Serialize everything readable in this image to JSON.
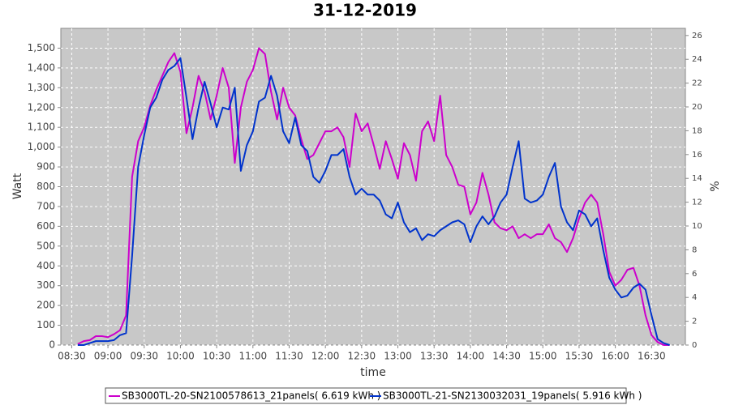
{
  "chart_data": {
    "type": "line",
    "title": "31-12-2019",
    "xlabel": "time",
    "ylabel": "Watt",
    "y2label": "%",
    "x": [
      "08:35",
      "08:40",
      "08:45",
      "08:50",
      "08:55",
      "09:00",
      "09:05",
      "09:10",
      "09:15",
      "09:20",
      "09:25",
      "09:30",
      "09:35",
      "09:40",
      "09:45",
      "09:50",
      "09:55",
      "10:00",
      "10:05",
      "10:10",
      "10:15",
      "10:20",
      "10:25",
      "10:30",
      "10:35",
      "10:40",
      "10:45",
      "10:50",
      "10:55",
      "11:00",
      "11:05",
      "11:10",
      "11:15",
      "11:20",
      "11:25",
      "11:30",
      "11:35",
      "11:40",
      "11:45",
      "11:50",
      "11:55",
      "12:00",
      "12:05",
      "12:10",
      "12:15",
      "12:20",
      "12:25",
      "12:30",
      "12:35",
      "12:40",
      "12:45",
      "12:50",
      "12:55",
      "13:00",
      "13:05",
      "13:10",
      "13:15",
      "13:20",
      "13:25",
      "13:30",
      "13:35",
      "13:40",
      "13:45",
      "13:50",
      "13:55",
      "14:00",
      "14:05",
      "14:10",
      "14:15",
      "14:20",
      "14:25",
      "14:30",
      "14:35",
      "14:40",
      "14:45",
      "14:50",
      "14:55",
      "15:00",
      "15:05",
      "15:10",
      "15:15",
      "15:20",
      "15:25",
      "15:30",
      "15:35",
      "15:40",
      "15:45",
      "15:50",
      "15:55",
      "16:00",
      "16:05",
      "16:10",
      "16:15",
      "16:20",
      "16:25",
      "16:30",
      "16:35",
      "16:40",
      "16:45"
    ],
    "series": [
      {
        "name": "SB3000TL-20-SN2100578613_21panels( 6.619 kWh )",
        "color": "#cc00cc",
        "values": [
          5,
          20,
          25,
          45,
          45,
          40,
          55,
          75,
          150,
          850,
          1030,
          1100,
          1210,
          1290,
          1360,
          1430,
          1475,
          1380,
          1070,
          1200,
          1360,
          1280,
          1140,
          1260,
          1400,
          1300,
          920,
          1200,
          1330,
          1390,
          1500,
          1470,
          1280,
          1140,
          1300,
          1200,
          1160,
          1040,
          940,
          960,
          1020,
          1080,
          1080,
          1100,
          1050,
          900,
          1170,
          1080,
          1120,
          1010,
          890,
          1030,
          940,
          840,
          1020,
          960,
          830,
          1080,
          1130,
          1030,
          1260,
          960,
          900,
          810,
          800,
          660,
          720,
          870,
          760,
          620,
          590,
          580,
          600,
          540,
          560,
          540,
          560,
          560,
          610,
          540,
          520,
          470,
          540,
          640,
          720,
          760,
          720,
          560,
          370,
          300,
          330,
          380,
          390,
          300,
          150,
          50,
          15,
          0,
          0
        ]
      },
      {
        "name": "SB3000TL-21-SN2130032031_19panels( 5.916 kWh )",
        "color": "#0033cc",
        "values": [
          0,
          0,
          10,
          20,
          20,
          20,
          25,
          50,
          60,
          450,
          900,
          1060,
          1200,
          1250,
          1340,
          1390,
          1410,
          1450,
          1250,
          1040,
          1200,
          1330,
          1220,
          1100,
          1200,
          1190,
          1300,
          880,
          1010,
          1080,
          1230,
          1250,
          1360,
          1260,
          1080,
          1020,
          1150,
          1010,
          980,
          850,
          820,
          880,
          960,
          960,
          990,
          850,
          760,
          790,
          760,
          760,
          730,
          660,
          640,
          720,
          620,
          570,
          590,
          530,
          560,
          550,
          580,
          600,
          620,
          630,
          610,
          520,
          600,
          650,
          610,
          650,
          720,
          760,
          900,
          1030,
          740,
          720,
          730,
          760,
          850,
          920,
          700,
          620,
          580,
          680,
          660,
          600,
          640,
          480,
          340,
          280,
          240,
          250,
          290,
          310,
          280,
          150,
          30,
          10,
          0
        ]
      }
    ],
    "xlim": [
      "08:21",
      "16:58"
    ],
    "xticks": [
      "08:30",
      "09:00",
      "09:30",
      "10:00",
      "10:30",
      "11:00",
      "11:30",
      "12:00",
      "12:30",
      "13:00",
      "13:30",
      "14:00",
      "14:30",
      "15:00",
      "15:30",
      "16:00",
      "16:30"
    ],
    "ylim": [
      0,
      1600
    ],
    "yticks": [
      0,
      100,
      200,
      300,
      400,
      500,
      600,
      700,
      800,
      900,
      {
        "value": 1000,
        "label": "1,000"
      },
      {
        "value": 1100,
        "label": "1,100"
      },
      {
        "value": 1200,
        "label": "1,200"
      },
      {
        "value": 1300,
        "label": "1,300"
      },
      {
        "value": 1400,
        "label": "1,400"
      },
      {
        "value": 1500,
        "label": "1,500"
      }
    ],
    "y2lim": [
      0,
      26.6
    ],
    "y2ticks": [
      0,
      2,
      4,
      6,
      8,
      10,
      12,
      14,
      16,
      18,
      20,
      22,
      24,
      26
    ],
    "grid": true,
    "legend": "bottom"
  }
}
